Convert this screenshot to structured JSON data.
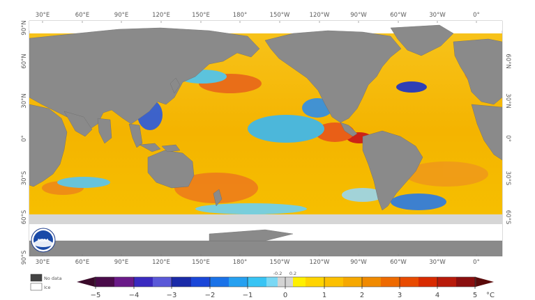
{
  "map": {
    "top_lon_labels": [
      "30°E",
      "60°E",
      "90°E",
      "120°E",
      "150°E",
      "180°",
      "150°W",
      "120°W",
      "90°W",
      "60°W",
      "30°W",
      "0°"
    ],
    "bottom_lon_labels": [
      "30°E",
      "60°E",
      "90°E",
      "120°E",
      "150°E",
      "180°",
      "150°W",
      "120°W",
      "90°W",
      "60°W",
      "30°W",
      "0°"
    ],
    "left_lat_labels": [
      "90°N",
      "60°N",
      "30°N",
      "0°",
      "30°S",
      "60°S",
      "90°S"
    ],
    "right_lat_labels": [
      "60°N",
      "30°N",
      "0°",
      "30°S",
      "60°S"
    ]
  },
  "legend": {
    "no_data_label": "No data",
    "ice_label": "Ice",
    "no_data_color": "#444444",
    "ice_color": "#ffffff"
  },
  "colorbar": {
    "unit": "°C",
    "major_ticks": [
      "−5",
      "−4",
      "−3",
      "−2",
      "−1",
      "0",
      "1",
      "2",
      "3",
      "4",
      "5"
    ],
    "minor_labels": [
      "-0.2",
      "0.2"
    ],
    "colors": {
      "cold_extreme": "#3a0a2a",
      "neutral": "#d3d3d3",
      "warm_extreme": "#5a0a0a"
    }
  },
  "logo": {
    "text": "NOAA"
  },
  "colors": {
    "land": "#8a8a8a",
    "ice": "#ffffff",
    "neutral_ocean": "#d6d6d6",
    "warm_ocean": "#f5b800",
    "hot_ocean": "#e2401a",
    "cool_ocean": "#38b8f0",
    "cold_ocean": "#1a3ad8"
  }
}
